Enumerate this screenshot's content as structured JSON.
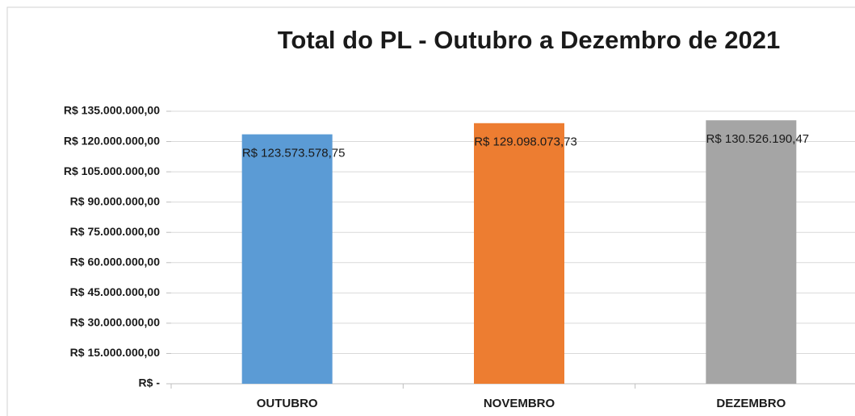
{
  "chart_data": {
    "type": "bar",
    "title": "Total do PL - Outubro a Dezembro de 2021",
    "categories": [
      "OUTUBRO",
      "NOVEMBRO",
      "DEZEMBRO"
    ],
    "values": [
      123573578.75,
      129098073.73,
      130526190.47
    ],
    "value_labels": [
      "R$ 123.573.578,75",
      "R$ 129.098.073,73",
      "R$ 130.526.190,47"
    ],
    "colors": [
      "#5b9bd5",
      "#ed7d31",
      "#a5a5a5"
    ],
    "ylim": [
      0,
      135000000
    ],
    "yticks": [
      {
        "value": 0,
        "label": "R$ -"
      },
      {
        "value": 15000000,
        "label": "R$ 15.000.000,00"
      },
      {
        "value": 30000000,
        "label": "R$ 30.000.000,00"
      },
      {
        "value": 45000000,
        "label": "R$ 45.000.000,00"
      },
      {
        "value": 60000000,
        "label": "R$ 60.000.000,00"
      },
      {
        "value": 75000000,
        "label": "R$ 75.000.000,00"
      },
      {
        "value": 90000000,
        "label": "R$ 90.000.000,00"
      },
      {
        "value": 105000000,
        "label": "R$ 105.000.000,00"
      },
      {
        "value": 120000000,
        "label": "R$ 120.000.000,00"
      },
      {
        "value": 135000000,
        "label": "R$ 135.000.000,00"
      }
    ],
    "grid": true
  }
}
